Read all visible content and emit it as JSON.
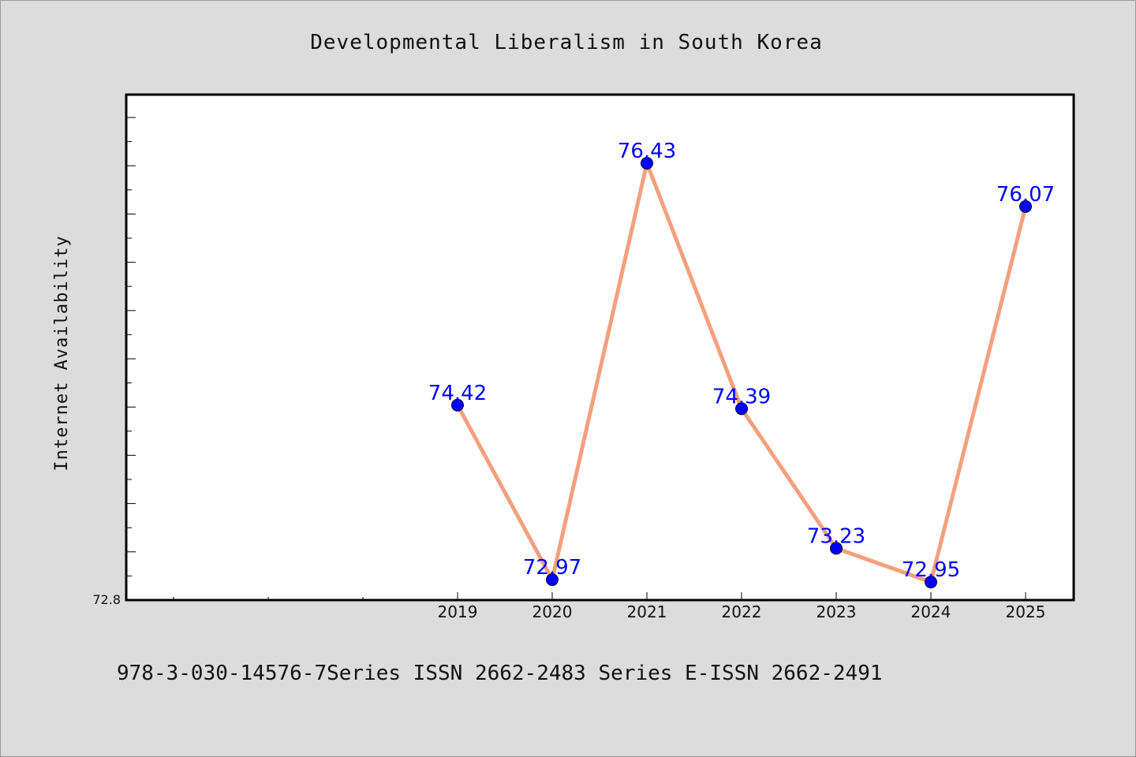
{
  "chart_data": {
    "type": "line",
    "title": "Developmental Liberalism in South Korea",
    "xlabel": "",
    "ylabel": "Internet Availability",
    "categories": [
      "2019",
      "2020",
      "2021",
      "2022",
      "2023",
      "2024",
      "2025"
    ],
    "series": [
      {
        "values": [
          74.42,
          72.97,
          76.43,
          74.39,
          73.23,
          72.95,
          76.07
        ],
        "labels": [
          "74.42",
          "72.97",
          "76.43",
          "74.39",
          "73.23",
          "72.95",
          "76.07"
        ]
      }
    ],
    "y_min_label": "72.8",
    "ylim": [
      72.8,
      77.0
    ],
    "grid": false,
    "legend": "none",
    "colors": {
      "line": "#f4a07e",
      "marker": "#0000ff",
      "data_label": "#0000ff",
      "background": "#dcdcdc",
      "plot_background": "#ffffff"
    }
  },
  "footer": {
    "text": "978-3-030-14576-7Series ISSN 2662-2483 Series E-ISSN 2662-2491"
  }
}
